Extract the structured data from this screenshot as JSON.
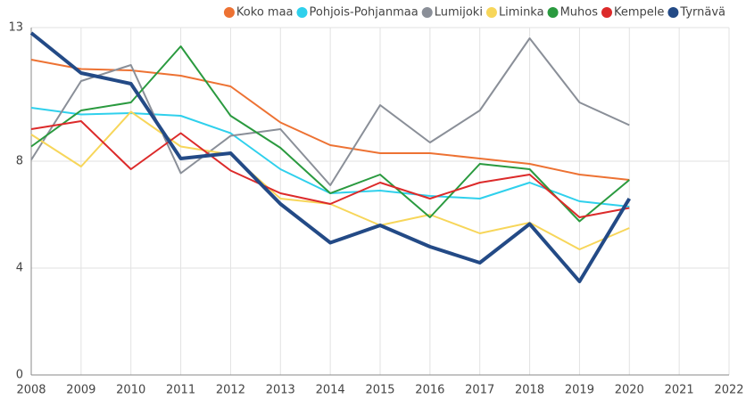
{
  "chart_data": {
    "type": "line",
    "x": [
      2008,
      2009,
      2010,
      2011,
      2012,
      2013,
      2014,
      2015,
      2016,
      2017,
      2018,
      2019,
      2020
    ],
    "series": [
      {
        "name": "Koko maa",
        "color": "#ed7233",
        "width": 2,
        "values": [
          11.8,
          11.45,
          11.4,
          11.2,
          10.8,
          9.45,
          8.6,
          8.3,
          8.3,
          8.1,
          7.9,
          7.5,
          7.3
        ]
      },
      {
        "name": "Pohjois-Pohjanmaa",
        "color": "#2fd0ec",
        "width": 2,
        "values": [
          10.0,
          9.75,
          9.8,
          9.7,
          9.05,
          7.7,
          6.8,
          6.9,
          6.7,
          6.6,
          7.2,
          6.5,
          6.3
        ]
      },
      {
        "name": "Lumijoki",
        "color": "#8a8f98",
        "width": 2,
        "values": [
          8.05,
          11.0,
          11.6,
          7.55,
          8.95,
          9.2,
          7.1,
          10.1,
          8.7,
          9.9,
          12.6,
          10.2,
          9.35
        ]
      },
      {
        "name": "Liminka",
        "color": "#f7d65a",
        "width": 2,
        "values": [
          9.0,
          7.8,
          9.85,
          8.55,
          8.25,
          6.6,
          6.4,
          5.6,
          6.0,
          5.3,
          5.7,
          4.7,
          5.5
        ]
      },
      {
        "name": "Muhos",
        "color": "#2a9a3f",
        "width": 2,
        "values": [
          8.55,
          9.9,
          10.2,
          12.3,
          9.7,
          8.5,
          6.8,
          7.5,
          5.9,
          7.9,
          7.7,
          5.75,
          7.3
        ]
      },
      {
        "name": "Kempele",
        "color": "#dc2a2a",
        "width": 2,
        "values": [
          9.2,
          9.5,
          7.7,
          9.05,
          7.65,
          6.8,
          6.4,
          7.2,
          6.6,
          7.2,
          7.5,
          5.9,
          6.25
        ]
      },
      {
        "name": "Tyrnävä",
        "color": "#234a86",
        "width": 4,
        "values": [
          12.8,
          11.3,
          10.9,
          8.1,
          8.3,
          6.4,
          4.95,
          5.6,
          4.8,
          4.2,
          5.65,
          3.5,
          6.6
        ]
      }
    ],
    "xlim": [
      2008,
      2022
    ],
    "xticks": [
      2008,
      2009,
      2010,
      2011,
      2012,
      2013,
      2014,
      2015,
      2016,
      2017,
      2018,
      2019,
      2020,
      2021,
      2022
    ],
    "ylim": [
      0,
      13
    ],
    "yticks": [
      0,
      4,
      8,
      13
    ],
    "grid": true,
    "legend": "top-right"
  }
}
